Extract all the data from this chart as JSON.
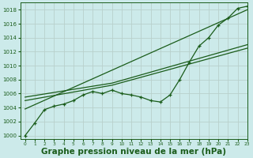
{
  "background_color": "#cceaea",
  "grid_color": "#b8d0cc",
  "line_color": "#1a5c1a",
  "xlabel": "Graphe pression niveau de la mer (hPa)",
  "xlabel_fontsize": 7.5,
  "xlim": [
    -0.5,
    23
  ],
  "ylim": [
    999.5,
    1019.0
  ],
  "yticks": [
    1000,
    1002,
    1004,
    1006,
    1008,
    1010,
    1012,
    1014,
    1016,
    1018
  ],
  "xticks": [
    0,
    1,
    2,
    3,
    4,
    5,
    6,
    7,
    8,
    9,
    10,
    11,
    12,
    13,
    14,
    15,
    16,
    17,
    18,
    19,
    20,
    21,
    22,
    23
  ],
  "main_x": [
    0,
    1,
    2,
    3,
    4,
    5,
    6,
    7,
    8,
    9,
    10,
    11,
    12,
    13,
    14,
    15,
    16,
    17,
    18,
    19,
    20,
    21,
    22,
    23
  ],
  "main_y": [
    1000.0,
    1001.8,
    1003.7,
    1004.2,
    1004.5,
    1005.0,
    1005.8,
    1006.3,
    1006.0,
    1006.5,
    1006.0,
    1005.8,
    1005.5,
    1005.0,
    1004.8,
    1005.8,
    1008.0,
    1010.5,
    1012.8,
    1014.0,
    1015.8,
    1016.8,
    1018.2,
    1018.5
  ],
  "trend1_x": [
    0,
    23
  ],
  "trend1_y": [
    1003.8,
    1018.0
  ],
  "trend2_x": [
    0,
    9,
    23
  ],
  "trend2_y": [
    1005.0,
    1007.2,
    1012.5
  ],
  "trend3_x": [
    0,
    9,
    23
  ],
  "trend3_y": [
    1005.5,
    1007.5,
    1013.0
  ],
  "lw": 0.9,
  "marker_size": 3.0
}
